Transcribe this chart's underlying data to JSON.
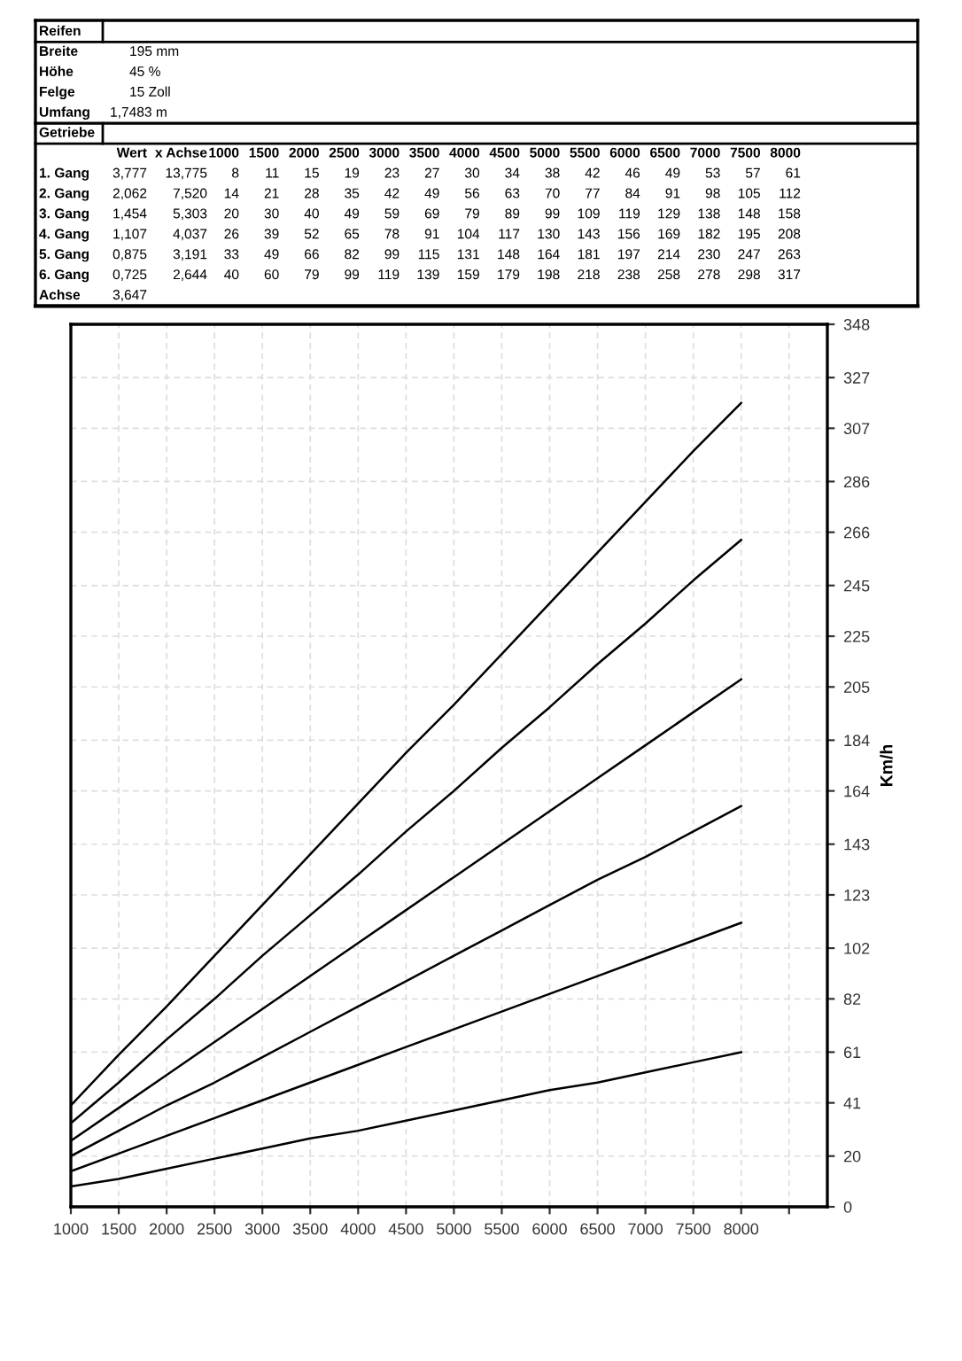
{
  "chart_data": {
    "type": "line",
    "annotations": [
      "Reifen",
      "Breite",
      "195 mm",
      "Höhe",
      "45 %",
      "Felge",
      "15 Zoll",
      "Umfang",
      "1,7483 m",
      "Getriebe",
      "Wert",
      "x Achse",
      "1000",
      "1500",
      "2000",
      "2500",
      "3000",
      "3500",
      "4000",
      "4500",
      "5000",
      "5500",
      "6000",
      "6500",
      "7000",
      "7500",
      "8000",
      "1. Gang",
      "3,777",
      "13,775",
      "8",
      "11",
      "15",
      "19",
      "23",
      "27",
      "30",
      "34",
      "38",
      "42",
      "46",
      "49",
      "53",
      "57",
      "61",
      "2. Gang",
      "2,062",
      "7,520",
      "14",
      "21",
      "28",
      "35",
      "42",
      "49",
      "56",
      "63",
      "70",
      "77",
      "84",
      "91",
      "98",
      "105",
      "112",
      "3. Gang",
      "1,454",
      "5,303",
      "20",
      "30",
      "40",
      "49",
      "59",
      "69",
      "79",
      "89",
      "99",
      "109",
      "119",
      "129",
      "138",
      "148",
      "158",
      "4. Gang",
      "1,107",
      "4,037",
      "26",
      "39",
      "52",
      "65",
      "78",
      "91",
      "104",
      "117",
      "130",
      "143",
      "156",
      "169",
      "182",
      "195",
      "208",
      "5. Gang",
      "0,875",
      "3,191",
      "33",
      "49",
      "66",
      "82",
      "99",
      "115",
      "131",
      "148",
      "164",
      "181",
      "197",
      "214",
      "230",
      "247",
      "263",
      "6. Gang",
      "0,725",
      "2,644",
      "40",
      "60",
      "79",
      "99",
      "119",
      "139",
      "159",
      "179",
      "198",
      "218",
      "238",
      "258",
      "278",
      "298",
      "317",
      "Achse",
      "3,647"
    ],
    "ylabel": "Km/h",
    "x": [
      1000,
      1500,
      2000,
      2500,
      3000,
      3500,
      4000,
      4500,
      5000,
      5500,
      6000,
      6500,
      7000,
      7500,
      8000
    ],
    "series": [
      {
        "color": "#000000",
        "values": [
          8,
          11,
          15,
          19,
          23,
          27,
          30,
          34,
          38,
          42,
          46,
          49,
          53,
          57,
          61
        ]
      },
      {
        "color": "#000000",
        "values": [
          14,
          21,
          28,
          35,
          42,
          49,
          56,
          63,
          70,
          77,
          84,
          91,
          98,
          105,
          112
        ]
      },
      {
        "color": "#000000",
        "values": [
          20,
          30,
          40,
          49,
          59,
          69,
          79,
          89,
          99,
          109,
          119,
          129,
          138,
          148,
          158
        ]
      },
      {
        "color": "#000000",
        "values": [
          26,
          39,
          52,
          65,
          78,
          91,
          104,
          117,
          130,
          143,
          156,
          169,
          182,
          195,
          208
        ]
      },
      {
        "color": "#000000",
        "values": [
          33,
          49,
          66,
          82,
          99,
          115,
          131,
          148,
          164,
          181,
          197,
          214,
          230,
          247,
          263
        ]
      },
      {
        "color": "#000000",
        "values": [
          40,
          60,
          79,
          99,
          119,
          139,
          159,
          179,
          198,
          218,
          238,
          258,
          278,
          298,
          317
        ]
      }
    ],
    "xlim": [
      1000,
      8900
    ],
    "xticks": [
      1000,
      1500,
      2000,
      2500,
      3000,
      3500,
      4000,
      4500,
      5000,
      5500,
      6000,
      6500,
      7000,
      7500,
      8000,
      {
        "value": 8500,
        "label": null
      }
    ],
    "ylim": [
      0,
      348
    ],
    "yticks": [
      0,
      20,
      41,
      61,
      82,
      102,
      123,
      143,
      164,
      184,
      205,
      225,
      245,
      266,
      286,
      307,
      327,
      348
    ],
    "grid": true,
    "line_style": "solid",
    "marker": "none",
    "legend": false
  }
}
